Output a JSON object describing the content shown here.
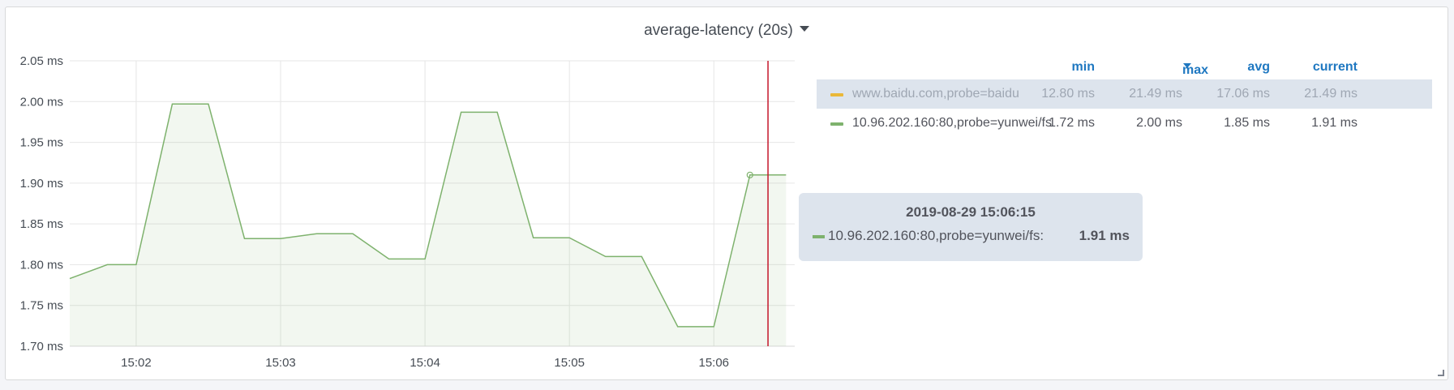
{
  "panel": {
    "title": "average-latency (20s)"
  },
  "chart_data": {
    "type": "area",
    "y_tick_labels": [
      "2.05 ms",
      "2.00 ms",
      "1.95 ms",
      "1.90 ms",
      "1.85 ms",
      "1.80 ms",
      "1.75 ms",
      "1.70 ms"
    ],
    "y_ticks": [
      2.05,
      2.0,
      1.95,
      1.9,
      1.85,
      1.8,
      1.75,
      1.7
    ],
    "ylim": [
      1.7,
      2.05
    ],
    "x_tick_labels": [
      "15:02",
      "15:03",
      "15:04",
      "15:05",
      "15:06"
    ],
    "x_ticks": [
      2,
      3,
      4,
      5,
      6
    ],
    "xlim": [
      1.54,
      6.56
    ],
    "grid": true,
    "series": [
      {
        "name": "10.96.202.160:80,probe=yunwei/fs",
        "color": "#7eb26d",
        "x": [
          1.54,
          1.8,
          2.0,
          2.25,
          2.5,
          2.75,
          3.0,
          3.25,
          3.5,
          3.75,
          4.0,
          4.25,
          4.5,
          4.75,
          5.0,
          5.25,
          5.5,
          5.75,
          6.0,
          6.25,
          6.5
        ],
        "values": [
          1.783,
          1.8,
          1.8,
          1.997,
          1.997,
          1.832,
          1.832,
          1.838,
          1.838,
          1.807,
          1.807,
          1.987,
          1.987,
          1.833,
          1.833,
          1.81,
          1.81,
          1.724,
          1.724,
          1.91,
          1.91
        ]
      }
    ],
    "crosshair_x": 6.375,
    "hover_point": {
      "x": 6.25,
      "value": 1.91
    }
  },
  "legend": {
    "headers": {
      "min": "min",
      "max": "max",
      "avg": "avg",
      "current": "current"
    },
    "rows": [
      {
        "name": "www.baidu.com,probe=baidu",
        "color": "#eab839",
        "min": "12.80 ms",
        "max": "21.49 ms",
        "avg": "17.06 ms",
        "current": "21.49 ms"
      },
      {
        "name": "10.96.202.160:80,probe=yunwei/fs",
        "color": "#7eb26d",
        "min": "1.72 ms",
        "max": "2.00 ms",
        "avg": "1.85 ms",
        "current": "1.91 ms"
      }
    ]
  },
  "tooltip": {
    "time": "2019-08-29 15:06:15",
    "series": "10.96.202.160:80,probe=yunwei/fs:",
    "value": "1.91 ms",
    "color": "#7eb26d"
  }
}
